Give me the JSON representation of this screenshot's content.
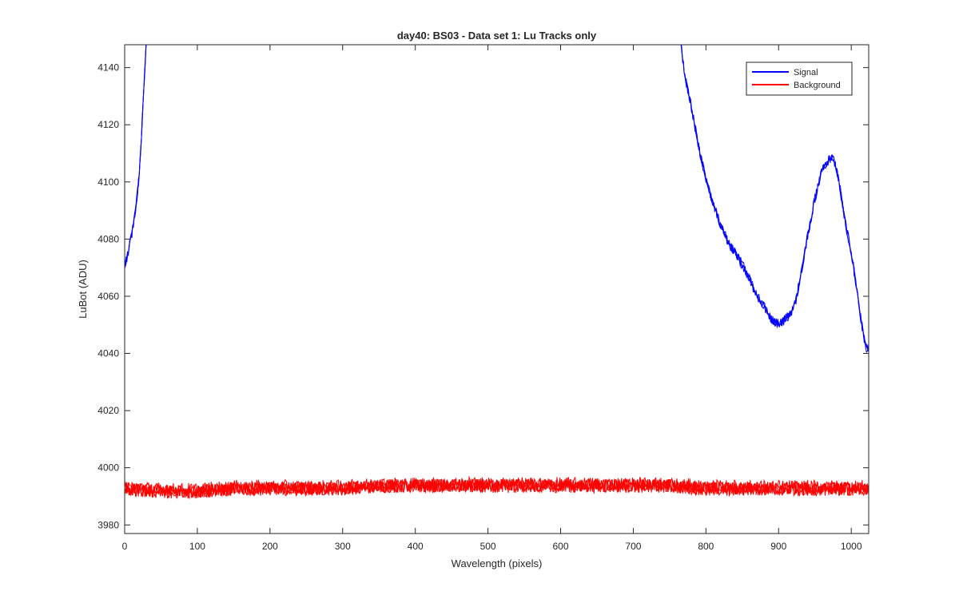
{
  "chart_data": {
    "type": "line",
    "title": "day40: BS03 - Data set 1: Lu Tracks only",
    "xlabel": "Wavelength (pixels)",
    "ylabel": "LuBot (ADU)",
    "xlim": [
      0,
      1024
    ],
    "ylim": [
      3977,
      4148
    ],
    "xticks": [
      0,
      100,
      200,
      300,
      400,
      500,
      600,
      700,
      800,
      900,
      1000
    ],
    "yticks": [
      3980,
      4000,
      4020,
      4040,
      4060,
      4080,
      4100,
      4120,
      4140
    ],
    "grid": false,
    "legend_position": "top-right",
    "series": [
      {
        "name": "Signal",
        "color": "#0000ff",
        "x": [
          0,
          5,
          10,
          15,
          20,
          25,
          28,
          30,
          765,
          770,
          780,
          790,
          800,
          810,
          820,
          830,
          840,
          850,
          860,
          870,
          880,
          890,
          900,
          910,
          920,
          925,
          930,
          940,
          950,
          960,
          970,
          975,
          980,
          985,
          990,
          1000,
          1005,
          1010,
          1015,
          1020,
          1024
        ],
        "y": [
          4070,
          4075,
          4082,
          4090,
          4102,
          4125,
          4140,
          4150,
          4150,
          4138,
          4126,
          4112,
          4101,
          4092,
          4085,
          4079,
          4075,
          4071,
          4066,
          4060,
          4056,
          4052,
          4050,
          4052,
          4055,
          4060,
          4067,
          4081,
          4094,
          4104,
          4108,
          4108,
          4104,
          4097,
          4088,
          4075,
          4067,
          4058,
          4049,
          4042,
          4042
        ]
      },
      {
        "name": "Background",
        "color": "#ff0000",
        "x": [
          0,
          50,
          100,
          150,
          200,
          250,
          300,
          350,
          400,
          450,
          500,
          550,
          600,
          650,
          700,
          750,
          800,
          850,
          900,
          950,
          1000,
          1024
        ],
        "y": [
          3993,
          3992,
          3992,
          3993,
          3993,
          3993,
          3993,
          3994,
          3994,
          3994,
          3994,
          3994,
          3994,
          3994,
          3994,
          3994,
          3993,
          3993,
          3993,
          3993,
          3993,
          3993
        ]
      }
    ]
  }
}
